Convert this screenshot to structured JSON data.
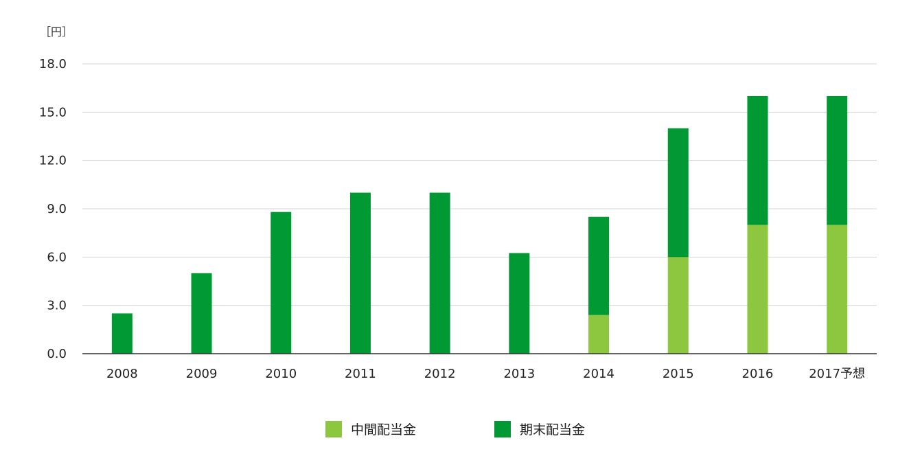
{
  "chart_data": {
    "type": "bar",
    "stacked": true,
    "unit_label": "［円］",
    "categories": [
      "2008",
      "2009",
      "2010",
      "2011",
      "2012",
      "2013",
      "2014",
      "2015",
      "2016",
      "2017予想"
    ],
    "series": [
      {
        "name": "中間配当金",
        "color": "#8dc63f",
        "values": [
          0,
          0,
          0,
          0,
          0,
          0,
          2.4,
          6.0,
          8.0,
          8.0
        ]
      },
      {
        "name": "期末配当金",
        "color": "#009933",
        "values": [
          2.5,
          5.0,
          8.8,
          10.0,
          10.0,
          6.25,
          6.1,
          8.0,
          8.0,
          8.0
        ]
      }
    ],
    "y_ticks": [
      "0.0",
      "3.0",
      "6.0",
      "9.0",
      "12.0",
      "15.0",
      "18.0"
    ],
    "ylim": [
      0,
      18
    ],
    "grid": true,
    "legend_position": "bottom-center"
  }
}
